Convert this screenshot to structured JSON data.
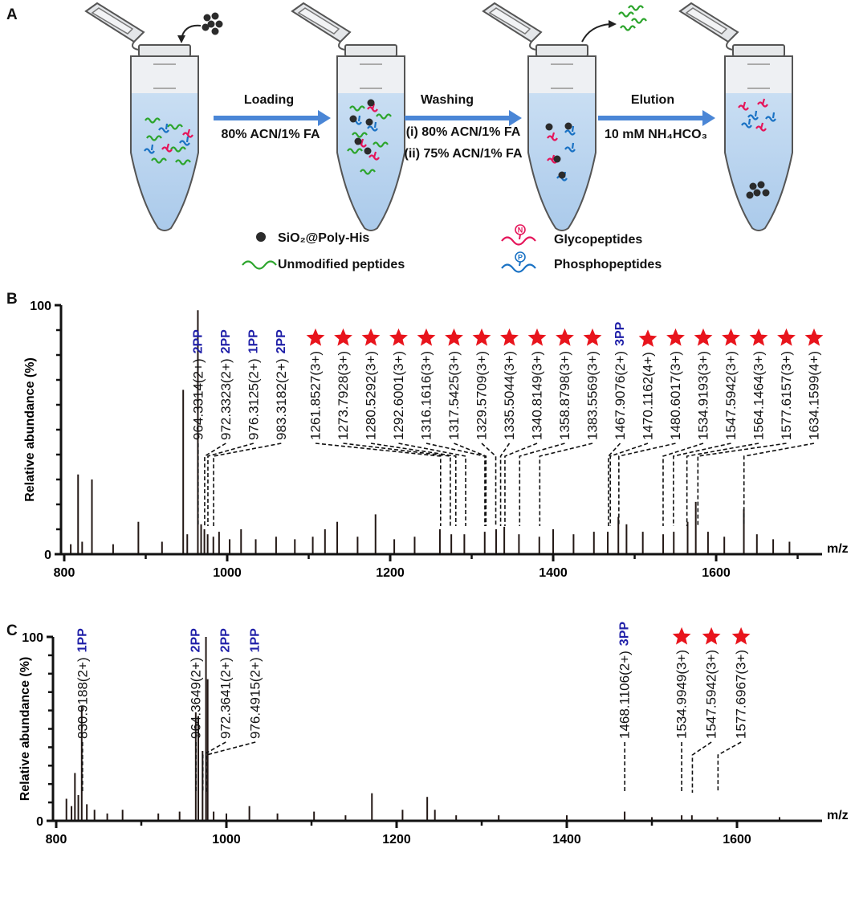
{
  "panel_a": {
    "label": "A",
    "steps": [
      {
        "name": "Loading",
        "conditions": [
          "80% ACN/1% FA"
        ]
      },
      {
        "name": "Washing",
        "conditions": [
          "(i) 80% ACN/1% FA",
          "(ii) 75% ACN/1% FA"
        ]
      },
      {
        "name": "Elution",
        "conditions": [
          "10 mM NH₄HCO₃"
        ]
      }
    ],
    "legend": [
      {
        "label": "SiO₂@Poly-His"
      },
      {
        "label": "Unmodified peptides"
      },
      {
        "label": "Glycopeptides",
        "icon_letter": "N"
      },
      {
        "label": "Phosphopeptides",
        "icon_letter": "P"
      }
    ]
  },
  "chart_data": [
    {
      "type": "spectrum",
      "panel": "B",
      "xlabel": "m/z",
      "ylabel": "Relative abundance (%)",
      "xlim": [
        800,
        1730
      ],
      "ylim": [
        0,
        100
      ],
      "xticks": [
        800,
        1000,
        1200,
        1400,
        1600
      ],
      "xminorticks": [
        900,
        1100,
        1300,
        1500,
        1700
      ],
      "yticks": [
        0,
        100
      ],
      "yminorticks": [
        10,
        20,
        30,
        40,
        50,
        60,
        70,
        80,
        90
      ],
      "color": "#231815",
      "tag_color": "#1f1fa8",
      "star_color": "#e8141c",
      "x": [
        808,
        817,
        822,
        834,
        860,
        891,
        920,
        946,
        951,
        964,
        968,
        972,
        976,
        983,
        990,
        1003,
        1017,
        1035,
        1060,
        1083,
        1105,
        1120,
        1135,
        1160,
        1182,
        1205,
        1230,
        1261,
        1275,
        1291,
        1316,
        1330,
        1340,
        1358,
        1383,
        1400,
        1425,
        1450,
        1467,
        1480,
        1490,
        1510,
        1535,
        1548,
        1565,
        1575,
        1590,
        1610,
        1634,
        1650,
        1670,
        1690
      ],
      "values": [
        4,
        32,
        5,
        30,
        4,
        13,
        5,
        66,
        8,
        98,
        12,
        10,
        8,
        7,
        9,
        6,
        10,
        6,
        7,
        6,
        7,
        10,
        13,
        7,
        16,
        6,
        7,
        10,
        8,
        8,
        9,
        10,
        11,
        8,
        7,
        10,
        8,
        9,
        9,
        15,
        12,
        9,
        8,
        9,
        13,
        21,
        9,
        7,
        18,
        8,
        6,
        5
      ],
      "annotations": [
        {
          "mz": 964.3314,
          "label": "964.3314(2+)",
          "tag": "2PP"
        },
        {
          "mz": 972.3323,
          "label": "972.3323(2+)",
          "tag": "2PP"
        },
        {
          "mz": 976.3125,
          "label": "976.3125(2+)",
          "tag": "1PP"
        },
        {
          "mz": 983.3182,
          "label": "983.3182(2+)",
          "tag": "2PP"
        },
        {
          "mz": 1261.8527,
          "label": "1261.8527(3+)"
        },
        {
          "mz": 1273.7928,
          "label": "1273.7928(3+)"
        },
        {
          "mz": 1280.5292,
          "label": "1280.5292(3+)"
        },
        {
          "mz": 1292.6001,
          "label": "1292.6001(3+)"
        },
        {
          "mz": 1316.1616,
          "label": "1316.1616(3+)"
        },
        {
          "mz": 1317.5425,
          "label": "1317.5425(3+)"
        },
        {
          "mz": 1329.5709,
          "label": "1329.5709(3+)"
        },
        {
          "mz": 1335.5044,
          "label": "1335.5044(3+)"
        },
        {
          "mz": 1340.8149,
          "label": "1340.8149(3+)"
        },
        {
          "mz": 1358.8798,
          "label": "1358.8798(3+)"
        },
        {
          "mz": 1383.5569,
          "label": "1383.5569(3+)"
        },
        {
          "mz": 1467.9076,
          "label": "1467.9076(2+)",
          "tag": "3PP"
        },
        {
          "mz": 1470.1162,
          "label": "1470.1162(4+)"
        },
        {
          "mz": 1480.6017,
          "label": "1480.6017(3+)"
        },
        {
          "mz": 1534.9193,
          "label": "1534.9193(3+)"
        },
        {
          "mz": 1547.5942,
          "label": "1547.5942(3+)"
        },
        {
          "mz": 1564.1464,
          "label": "1564.1464(3+)"
        },
        {
          "mz": 1577.6157,
          "label": "1577.6157(3+)"
        },
        {
          "mz": 1634.1599,
          "label": "1634.1599(4+)"
        }
      ]
    },
    {
      "type": "spectrum",
      "panel": "C",
      "xlabel": "m/z",
      "ylabel": "Relative abundance (%)",
      "xlim": [
        800,
        1700
      ],
      "ylim": [
        0,
        100
      ],
      "xticks": [
        800,
        1000,
        1200,
        1400,
        1600
      ],
      "xminorticks": [
        900,
        1100,
        1300,
        1500
      ],
      "yticks": [
        0,
        100
      ],
      "yminorticks": [
        10,
        20,
        30,
        40,
        50,
        60,
        70,
        80,
        90
      ],
      "color": "#231815",
      "tag_color": "#1f1fa8",
      "star_color": "#e8141c",
      "x": [
        812,
        818,
        822,
        826,
        830,
        836,
        845,
        860,
        878,
        920,
        945,
        964,
        967,
        972,
        976,
        978,
        985,
        1000,
        1027,
        1060,
        1103,
        1140,
        1171,
        1207,
        1236,
        1245,
        1270,
        1320,
        1400,
        1468,
        1500,
        1535,
        1547,
        1577,
        1650
      ],
      "values": [
        12,
        8,
        26,
        14,
        62,
        9,
        6,
        4,
        6,
        4,
        5,
        59,
        57,
        38,
        100,
        77,
        5,
        4,
        8,
        4,
        5,
        3,
        15,
        6,
        13,
        6,
        3,
        3,
        3,
        5,
        2,
        3,
        3,
        2,
        2
      ],
      "annotations": [
        {
          "mz": 830.9188,
          "label": "830.9188(2+)",
          "tag": "1PP"
        },
        {
          "mz": 964.3649,
          "label": "964.3649(2+)",
          "tag": "2PP"
        },
        {
          "mz": 972.3641,
          "label": "972.3641(2+)",
          "tag": "2PP"
        },
        {
          "mz": 976.4915,
          "label": "976.4915(2+)",
          "tag": "1PP"
        },
        {
          "mz": 1468.1106,
          "label": "1468.1106(2+)",
          "tag": "3PP"
        },
        {
          "mz": 1534.9949,
          "label": "1534.9949(3+)"
        },
        {
          "mz": 1547.5942,
          "label": "1547.5942(3+)"
        },
        {
          "mz": 1577.6967,
          "label": "1577.6967(3+)"
        }
      ]
    }
  ]
}
